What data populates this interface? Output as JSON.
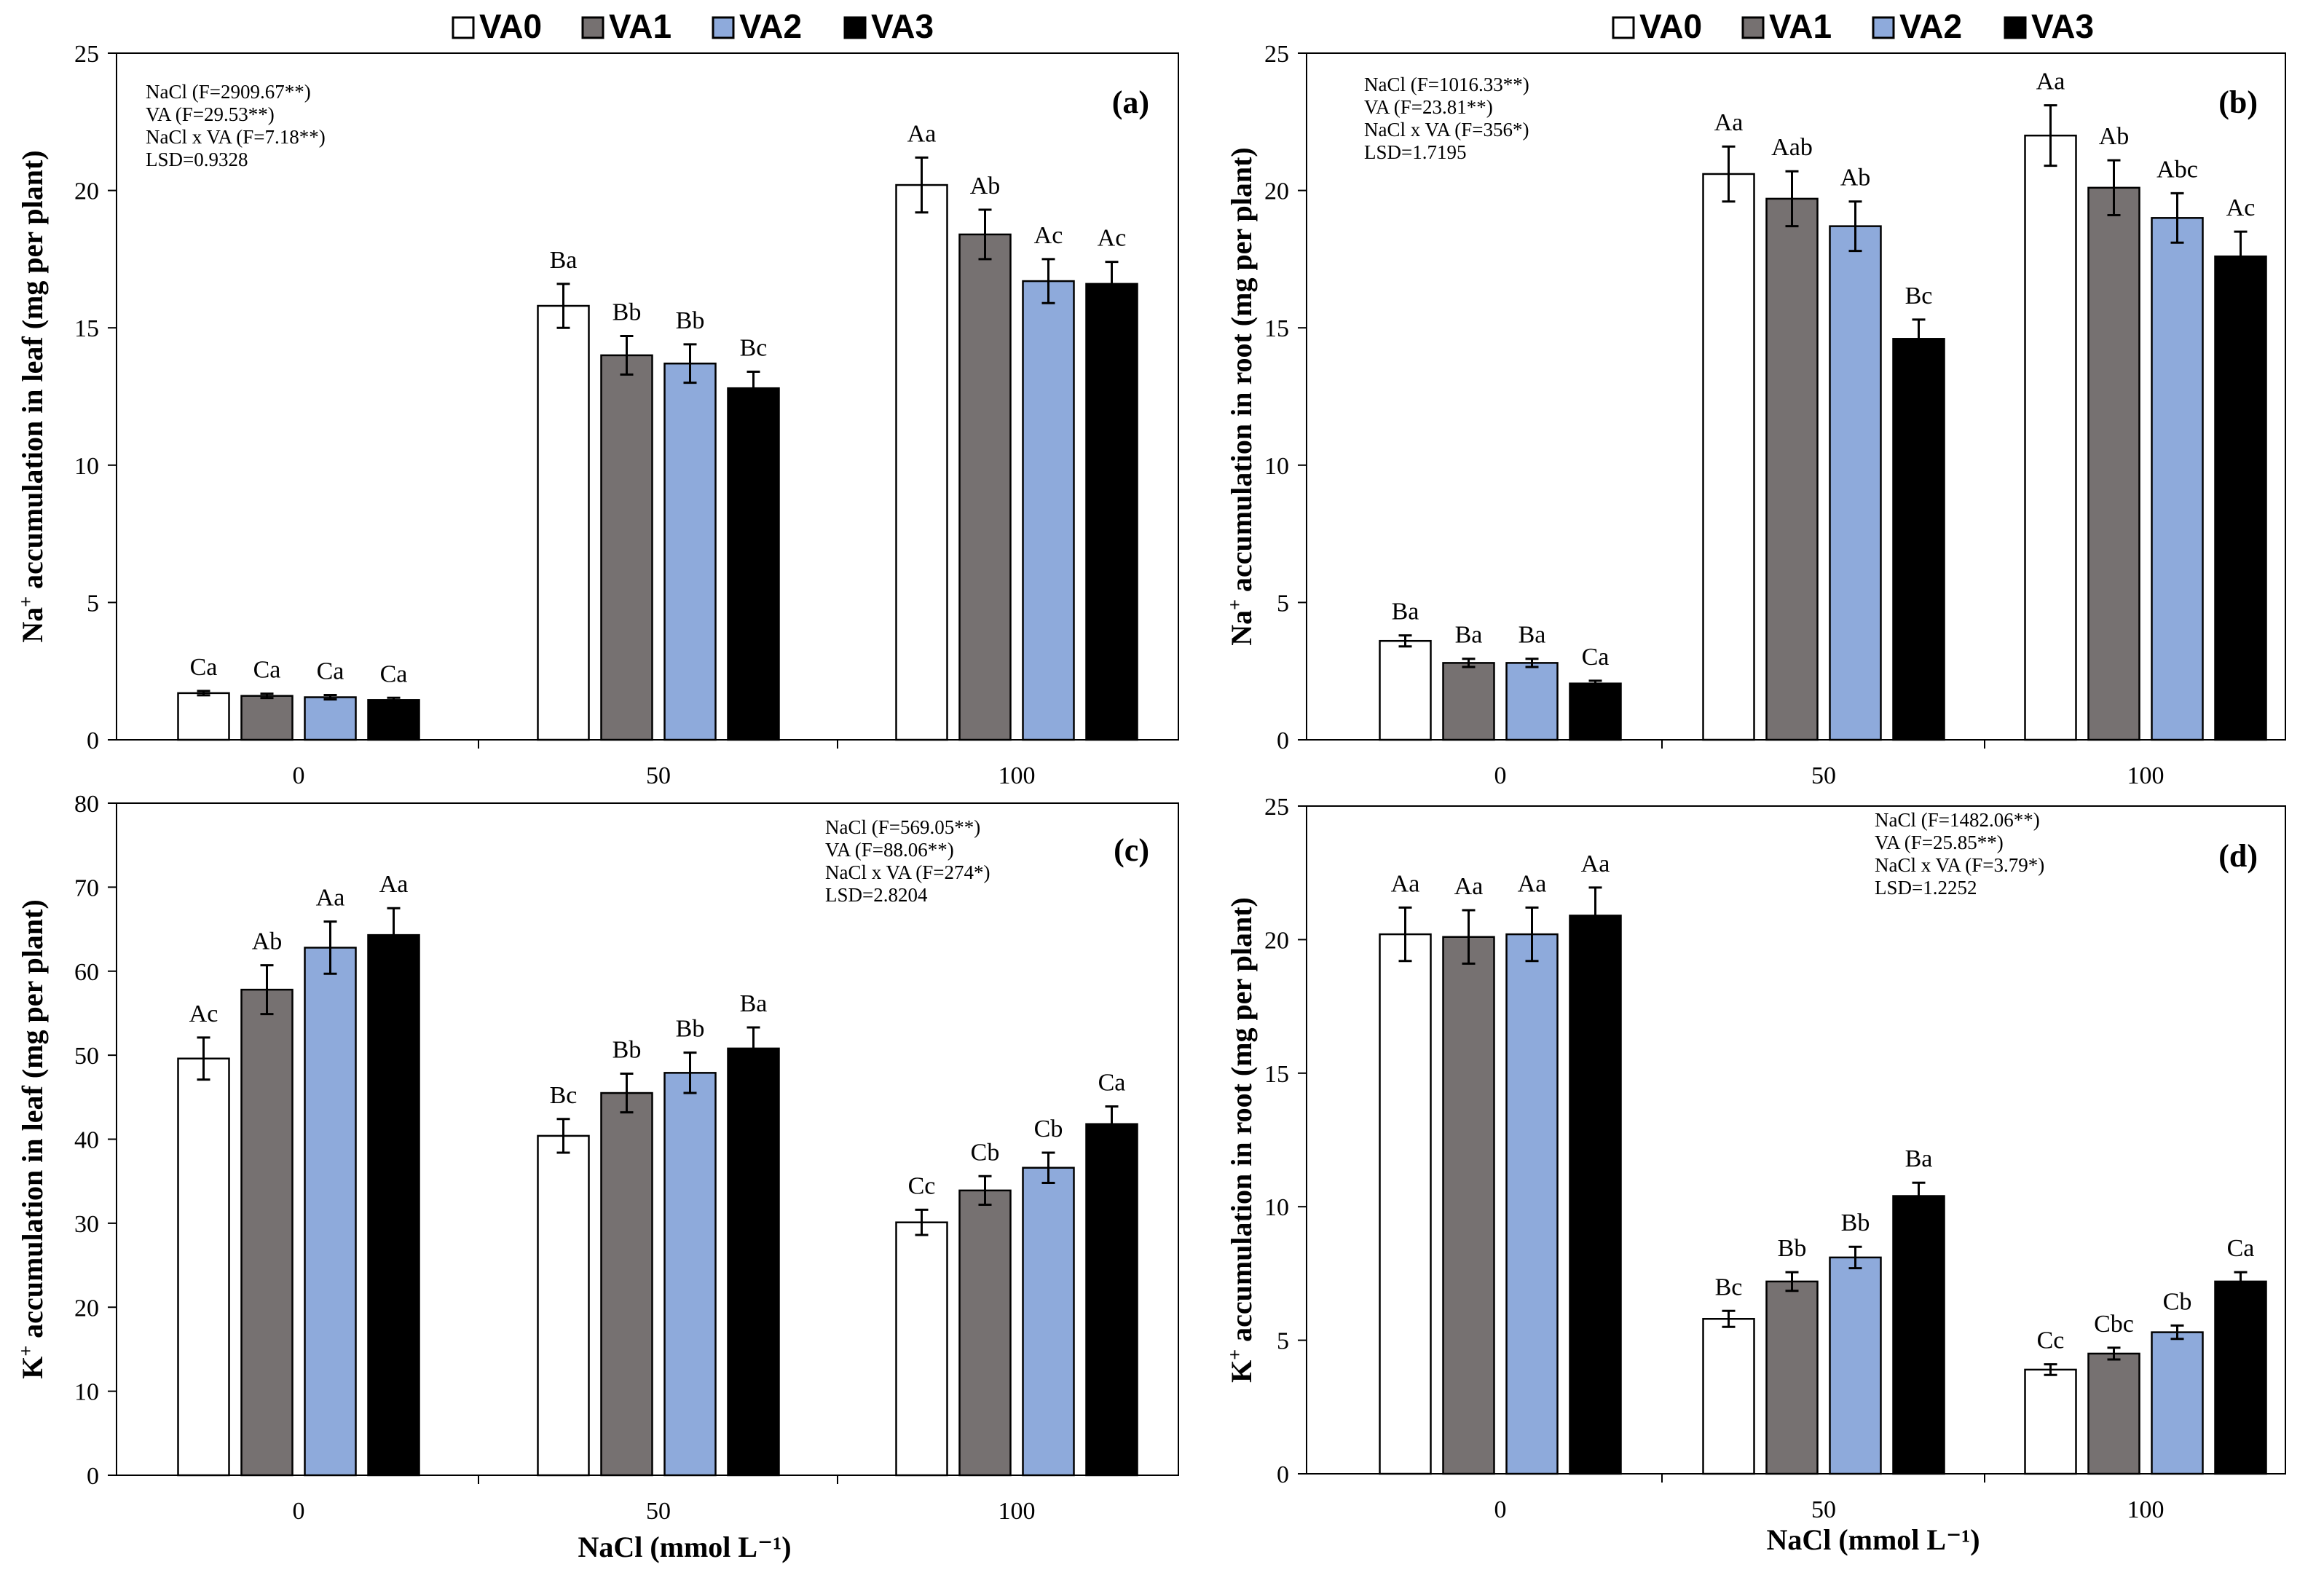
{
  "legend": [
    "VA0",
    "VA1",
    "VA2",
    "VA3"
  ],
  "colors": {
    "VA0": "#ffffff",
    "VA1": "#767171",
    "VA2": "#8eaadb",
    "VA3": "#000000"
  },
  "x_axis_label": "NaCl (mmol L⁻¹)",
  "chart_data": [
    {
      "type": "bar",
      "panel": "(a)",
      "categories": [
        "0",
        "50",
        "100"
      ],
      "ylabel_main": "Na",
      "ylabel_sup": "+",
      "ylabel_rest": " accumulation in leaf (mg per plant)",
      "ylim": [
        0,
        25
      ],
      "yticks": [
        0,
        5,
        10,
        15,
        20,
        25
      ],
      "stats": [
        "NaCl (F=2909.67**)",
        "VA (F=29.53**)",
        "NaCl x VA (F=7.18**)",
        "LSD=0.9328"
      ],
      "series": [
        {
          "name": "VA0",
          "values": [
            1.7,
            15.8,
            20.2
          ],
          "errors": [
            0.08,
            0.8,
            1.0
          ],
          "labels": [
            "Ca",
            "Ba",
            "Aa"
          ]
        },
        {
          "name": "VA1",
          "values": [
            1.6,
            14.0,
            18.4
          ],
          "errors": [
            0.08,
            0.7,
            0.9
          ],
          "labels": [
            "Ca",
            "Bb",
            "Ab"
          ]
        },
        {
          "name": "VA2",
          "values": [
            1.55,
            13.7,
            16.7
          ],
          "errors": [
            0.08,
            0.7,
            0.8
          ],
          "labels": [
            "Ca",
            "Bb",
            "Ac"
          ]
        },
        {
          "name": "VA3",
          "values": [
            1.45,
            12.8,
            16.6
          ],
          "errors": [
            0.08,
            0.6,
            0.8
          ],
          "labels": [
            "Ca",
            "Bc",
            "Ac"
          ]
        }
      ]
    },
    {
      "type": "bar",
      "panel": "(b)",
      "categories": [
        "0",
        "50",
        "100"
      ],
      "ylabel_main": "Na",
      "ylabel_sup": "+",
      "ylabel_rest": " accumulation in root (mg per plant)",
      "ylim": [
        0,
        25
      ],
      "yticks": [
        0,
        5,
        10,
        15,
        20,
        25
      ],
      "stats": [
        "NaCl (F=1016.33**)",
        "VA (F=23.81**)",
        "NaCl x VA (F=356*)",
        "LSD=1.7195"
      ],
      "series": [
        {
          "name": "VA0",
          "values": [
            3.6,
            20.6,
            22.0
          ],
          "errors": [
            0.2,
            1.0,
            1.1
          ],
          "labels": [
            "Ba",
            "Aa",
            "Aa"
          ]
        },
        {
          "name": "VA1",
          "values": [
            2.8,
            19.7,
            20.1
          ],
          "errors": [
            0.15,
            1.0,
            1.0
          ],
          "labels": [
            "Ba",
            "Aab",
            "Ab"
          ]
        },
        {
          "name": "VA2",
          "values": [
            2.8,
            18.7,
            19.0
          ],
          "errors": [
            0.15,
            0.9,
            0.9
          ],
          "labels": [
            "Ba",
            "Ab",
            "Abc"
          ]
        },
        {
          "name": "VA3",
          "values": [
            2.05,
            14.6,
            17.6
          ],
          "errors": [
            0.1,
            0.7,
            0.9
          ],
          "labels": [
            "Ca",
            "Bc",
            "Ac"
          ]
        }
      ]
    },
    {
      "type": "bar",
      "panel": "(c)",
      "categories": [
        "0",
        "50",
        "100"
      ],
      "ylabel_main": "K",
      "ylabel_sup": "+",
      "ylabel_rest": " accumulation in leaf (mg per plant)",
      "ylim": [
        0,
        80
      ],
      "yticks": [
        0,
        10,
        20,
        30,
        40,
        50,
        60,
        70,
        80
      ],
      "stats": [
        "NaCl (F=569.05**)",
        "VA (F=88.06**)",
        "NaCl x VA (F=274*)",
        "LSD=2.8204"
      ],
      "series": [
        {
          "name": "VA0",
          "values": [
            49.6,
            40.4,
            30.1
          ],
          "errors": [
            2.5,
            2.0,
            1.5
          ],
          "labels": [
            "Ac",
            "Bc",
            "Cc"
          ]
        },
        {
          "name": "VA1",
          "values": [
            57.8,
            45.5,
            33.9
          ],
          "errors": [
            2.9,
            2.3,
            1.7
          ],
          "labels": [
            "Ab",
            "Bb",
            "Cb"
          ]
        },
        {
          "name": "VA2",
          "values": [
            62.8,
            47.9,
            36.6
          ],
          "errors": [
            3.1,
            2.4,
            1.8
          ],
          "labels": [
            "Aa",
            "Bb",
            "Cb"
          ]
        },
        {
          "name": "VA3",
          "values": [
            64.3,
            50.8,
            41.8
          ],
          "errors": [
            3.2,
            2.5,
            2.1
          ],
          "labels": [
            "Aa",
            "Ba",
            "Ca"
          ]
        }
      ]
    },
    {
      "type": "bar",
      "panel": "(d)",
      "categories": [
        "0",
        "50",
        "100"
      ],
      "ylabel_main": "K",
      "ylabel_sup": "+",
      "ylabel_rest": " accumulation in root (mg per plant)",
      "ylim": [
        0,
        25
      ],
      "yticks": [
        0,
        5,
        10,
        15,
        20,
        25
      ],
      "stats": [
        "NaCl (F=1482.06**)",
        "VA (F=25.85**)",
        "NaCl x VA (F=3.79*)",
        "LSD=1.2252"
      ],
      "series": [
        {
          "name": "VA0",
          "values": [
            20.2,
            5.8,
            3.9
          ],
          "errors": [
            1.0,
            0.3,
            0.2
          ],
          "labels": [
            "Aa",
            "Bc",
            "Cc"
          ]
        },
        {
          "name": "VA1",
          "values": [
            20.1,
            7.2,
            4.5
          ],
          "errors": [
            1.0,
            0.35,
            0.22
          ],
          "labels": [
            "Aa",
            "Bb",
            "Cbc"
          ]
        },
        {
          "name": "VA2",
          "values": [
            20.2,
            8.1,
            5.3
          ],
          "errors": [
            1.0,
            0.4,
            0.25
          ],
          "labels": [
            "Aa",
            "Bb",
            "Cb"
          ]
        },
        {
          "name": "VA3",
          "values": [
            20.9,
            10.4,
            7.2
          ],
          "errors": [
            1.05,
            0.5,
            0.35
          ],
          "labels": [
            "Aa",
            "Ba",
            "Ca"
          ]
        }
      ]
    }
  ]
}
